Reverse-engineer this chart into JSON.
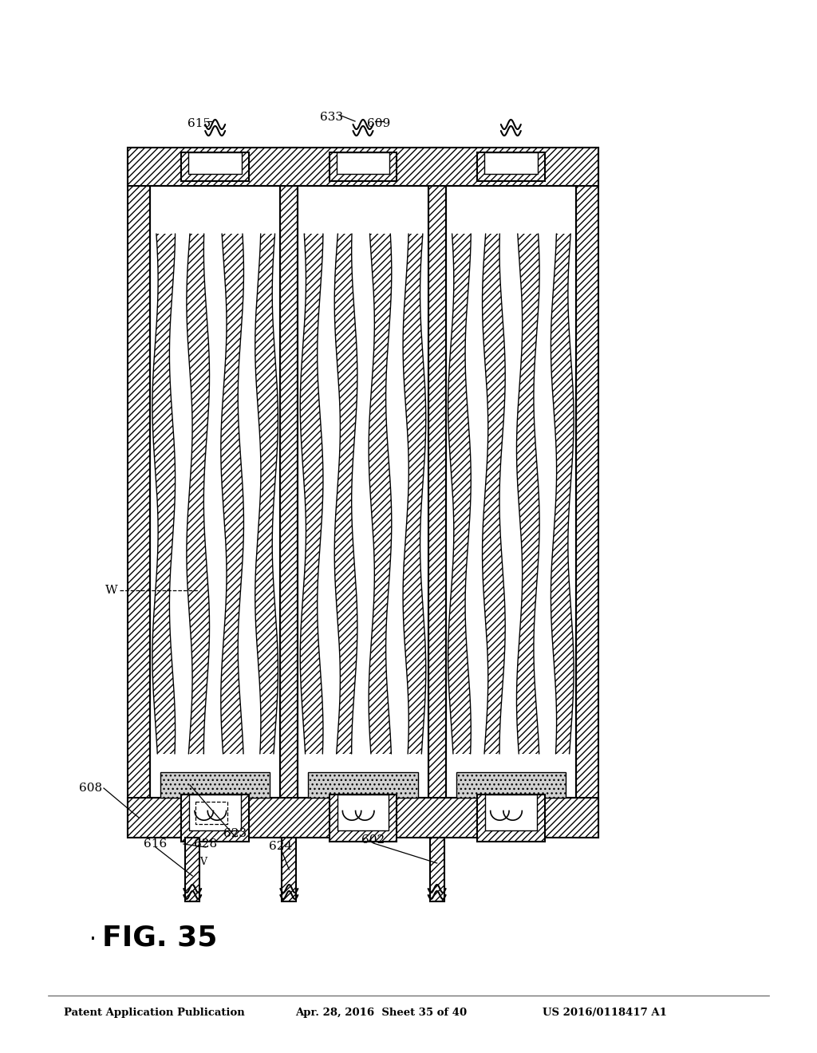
{
  "title": "FIG. 35",
  "header_left": "Patent Application Publication",
  "header_center": "Apr. 28, 2016  Sheet 35 of 40",
  "header_right": "US 2016/0118417 A1",
  "bg_color": "#ffffff",
  "line_color": "#000000"
}
